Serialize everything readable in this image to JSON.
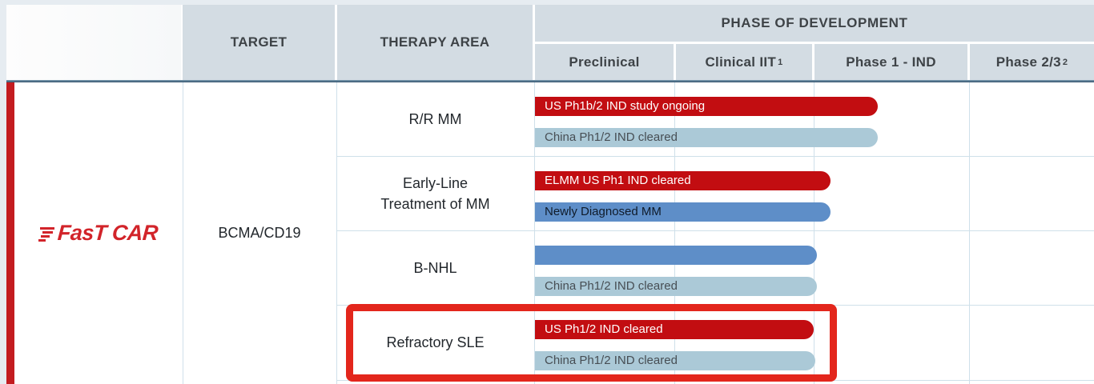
{
  "brand": "FasT CAR",
  "target": "BCMA/CD19",
  "header": {
    "target_label": "TARGET",
    "therapy_label": "THERAPY AREA",
    "phase_label": "PHASE OF DEVELOPMENT",
    "phases": [
      {
        "label": "Preclinical",
        "sup": ""
      },
      {
        "label": "Clinical IIT ",
        "sup": "1"
      },
      {
        "label": "Phase 1 - IND",
        "sup": ""
      },
      {
        "label": "Phase 2/3",
        "sup": "2"
      }
    ]
  },
  "colors": {
    "header_bg": "#d3dce3",
    "header_text": "#3e4347",
    "header_border": "#2f4e6a",
    "grid_line": "#cfe0ea",
    "page_strip": "#e6ecf1",
    "accent_red": "#c31c20",
    "logo_red": "#d2242a",
    "highlight_red": "#e3261c"
  },
  "bar_styles": {
    "red": {
      "bg": "#c20d11",
      "text": "#ffffff"
    },
    "blue": {
      "bg": "#5e8ec8",
      "text": "#0f1b2a"
    },
    "lightblue": {
      "bg": "#abc9d7",
      "text": "#474e54"
    }
  },
  "chart_data": {
    "type": "bar",
    "orientation": "horizontal",
    "title": "PHASE OF DEVELOPMENT",
    "axis_categories": [
      "Preclinical",
      "Clinical IIT 1",
      "Phase 1 - IND",
      "Phase 2/3 2"
    ],
    "extent_note": "extent_phases units: 1.0 = end of Preclinical, 2.0 = end of Clinical IIT, 3.0 = end of Phase 1 - IND",
    "group": {
      "brand": "FasT CAR",
      "target": "BCMA/CD19"
    },
    "rows": [
      {
        "therapy_area": "R/R MM",
        "highlighted": false,
        "bars": [
          {
            "label": "US Ph1b/2 IND study ongoing",
            "color": "red",
            "extent_phases": 2.41
          },
          {
            "label": "China Ph1/2 IND cleared",
            "color": "lightblue",
            "extent_phases": 2.41
          }
        ]
      },
      {
        "therapy_area": "Early-Line\nTreatment of MM",
        "highlighted": false,
        "bars": [
          {
            "label": "ELMM US Ph1 IND cleared",
            "color": "red",
            "extent_phases": 2.11
          },
          {
            "label": "Newly Diagnosed MM",
            "color": "blue",
            "extent_phases": 2.11
          }
        ]
      },
      {
        "therapy_area": "B-NHL",
        "highlighted": false,
        "bars": [
          {
            "label": "",
            "color": "blue",
            "extent_phases": 2.02
          },
          {
            "label": "China Ph1/2 IND cleared",
            "color": "lightblue",
            "extent_phases": 2.02
          }
        ]
      },
      {
        "therapy_area": "Refractory SLE",
        "highlighted": true,
        "bars": [
          {
            "label": "US Ph1/2 IND cleared",
            "color": "red",
            "extent_phases": 2.0
          },
          {
            "label": "China Ph1/2 IND cleared",
            "color": "lightblue",
            "extent_phases": 2.01
          }
        ]
      }
    ]
  }
}
